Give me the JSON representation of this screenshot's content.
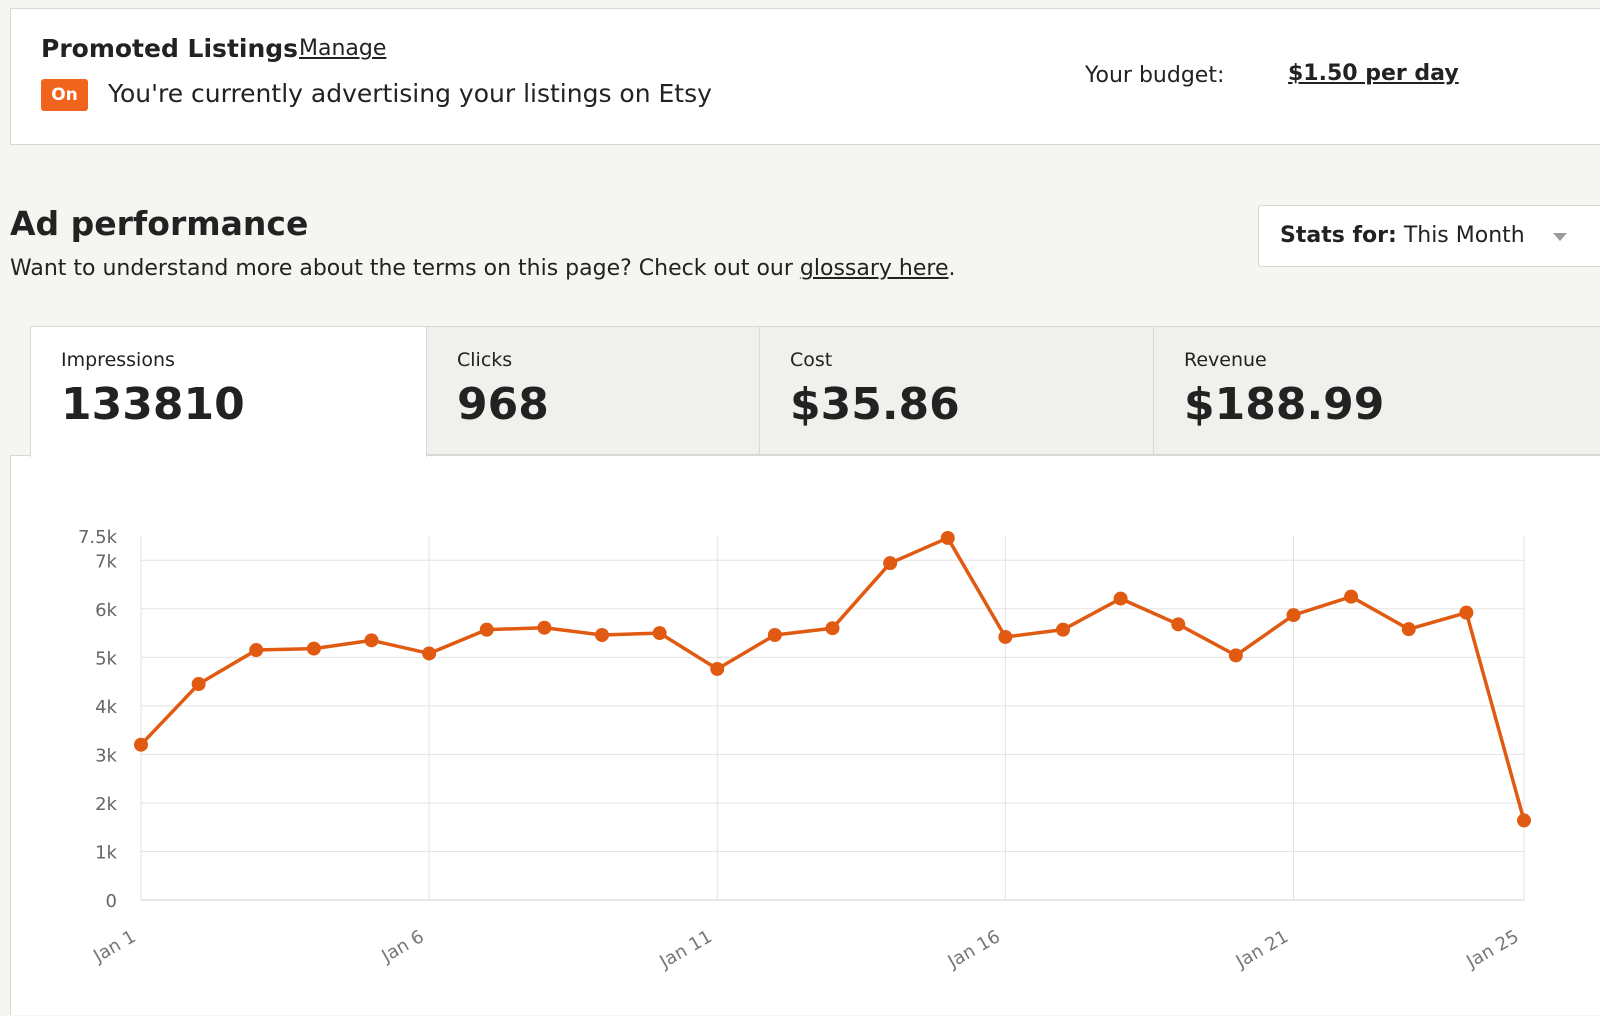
{
  "promoted": {
    "title": "Promoted Listings",
    "manage_label": "Manage",
    "badge": "On",
    "status_text": "You're currently advertising your listings on Etsy",
    "budget_label": "Your budget:",
    "budget_value": "$1.50 per day"
  },
  "performance": {
    "title": "Ad performance",
    "desc_prefix": "Want to understand more about the terms on this page? Check out our ",
    "glossary_label": "glossary here",
    "desc_suffix": ".",
    "stats_label": "Stats for:",
    "stats_value": "This Month"
  },
  "metrics": [
    {
      "label": "Impressions",
      "value": "133810"
    },
    {
      "label": "Clicks",
      "value": "968"
    },
    {
      "label": "Cost",
      "value": "$35.86"
    },
    {
      "label": "Revenue",
      "value": "$188.99"
    }
  ],
  "colors": {
    "accent": "#f1641e",
    "line": "#e15a12"
  },
  "chart_data": {
    "type": "line",
    "title": "",
    "xlabel": "",
    "ylabel": "",
    "ylim": [
      0,
      7500
    ],
    "yticks": [
      0,
      1000,
      2000,
      3000,
      4000,
      5000,
      6000,
      7000,
      7500
    ],
    "ytick_labels": [
      "0",
      "1k",
      "2k",
      "3k",
      "4k",
      "5k",
      "6k",
      "7k",
      "7.5k"
    ],
    "xtick_labels": [
      "Jan 1",
      "Jan 6",
      "Jan 11",
      "Jan 16",
      "Jan 21",
      "Jan 25"
    ],
    "xtick_days": [
      1,
      6,
      11,
      16,
      21,
      25
    ],
    "grid": true,
    "x": [
      1,
      2,
      3,
      4,
      5,
      6,
      7,
      8,
      9,
      10,
      11,
      12,
      13,
      14,
      15,
      16,
      17,
      18,
      19,
      20,
      21,
      22,
      23,
      24,
      25
    ],
    "series": [
      {
        "values": [
          3200,
          4450,
          5150,
          5180,
          5350,
          5080,
          5570,
          5610,
          5460,
          5500,
          4760,
          5460,
          5600,
          6940,
          7460,
          5420,
          5570,
          6210,
          5680,
          5040,
          5870,
          6250,
          5580,
          5920,
          1640
        ]
      }
    ]
  }
}
